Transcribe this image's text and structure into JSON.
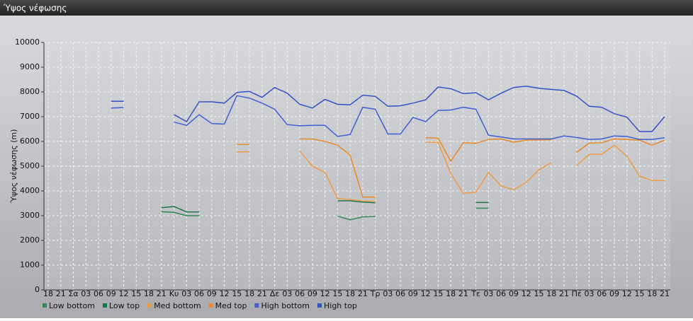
{
  "window_title": "Ύψος νέφωσης",
  "chart_data": {
    "type": "line",
    "ylabel": "Ύψος νέφωσης (m)",
    "categories": [
      "18",
      "21",
      "Σα",
      "03",
      "06",
      "09",
      "12",
      "15",
      "18",
      "21",
      "Κυ",
      "03",
      "06",
      "09",
      "12",
      "15",
      "18",
      "21",
      "Δε",
      "03",
      "06",
      "09",
      "12",
      "15",
      "18",
      "21",
      "Τρ",
      "03",
      "06",
      "09",
      "12",
      "15",
      "18",
      "21",
      "Τε",
      "03",
      "06",
      "09",
      "12",
      "15",
      "18",
      "21",
      "Πέ",
      "03",
      "06",
      "09",
      "12",
      "15",
      "18",
      "21"
    ],
    "ylim": [
      0,
      10000
    ],
    "yticks": [
      0,
      1000,
      2000,
      3000,
      4000,
      5000,
      6000,
      7000,
      8000,
      9000,
      10000
    ],
    "grid": true,
    "series": [
      {
        "name": "Low bottom",
        "color": "#2f8a55",
        "values": [
          null,
          null,
          null,
          null,
          null,
          null,
          null,
          null,
          null,
          3160,
          3130,
          3000,
          3000,
          null,
          null,
          null,
          null,
          null,
          null,
          null,
          null,
          null,
          null,
          2980,
          2830,
          2950,
          2970,
          null,
          null,
          null,
          null,
          null,
          null,
          null,
          3300,
          3300,
          null,
          null,
          null,
          null,
          null,
          null,
          null,
          null,
          null,
          null,
          null,
          null,
          null,
          null
        ]
      },
      {
        "name": "Low top",
        "color": "#1e7446",
        "values": [
          null,
          null,
          null,
          null,
          null,
          null,
          null,
          null,
          null,
          3320,
          3370,
          3150,
          3150,
          null,
          null,
          null,
          null,
          null,
          null,
          null,
          null,
          null,
          null,
          3600,
          3600,
          3550,
          3520,
          null,
          null,
          null,
          null,
          null,
          null,
          null,
          3530,
          3530,
          null,
          null,
          null,
          null,
          null,
          null,
          null,
          null,
          null,
          null,
          null,
          null,
          null,
          null
        ]
      },
      {
        "name": "Med bottom",
        "color": "#ee9b45",
        "values": [
          null,
          null,
          null,
          null,
          null,
          null,
          null,
          null,
          null,
          null,
          null,
          null,
          null,
          null,
          null,
          5580,
          5580,
          null,
          null,
          null,
          5620,
          5000,
          4750,
          3700,
          3650,
          3600,
          3580,
          null,
          null,
          null,
          5970,
          5960,
          4700,
          3900,
          3950,
          4750,
          4200,
          4050,
          4350,
          4850,
          5150,
          null,
          5020,
          5480,
          5480,
          5850,
          5400,
          4600,
          4420,
          4420
        ]
      },
      {
        "name": "Med top",
        "color": "#e88a2a",
        "values": [
          null,
          null,
          null,
          null,
          null,
          null,
          null,
          null,
          null,
          null,
          null,
          null,
          null,
          null,
          null,
          5880,
          5880,
          null,
          null,
          null,
          6100,
          6100,
          6000,
          5850,
          5450,
          3750,
          3750,
          null,
          null,
          null,
          6150,
          6130,
          5200,
          5950,
          5920,
          6080,
          6100,
          5970,
          6050,
          6060,
          6070,
          null,
          5560,
          5930,
          5950,
          6100,
          6080,
          6050,
          5850,
          6050
        ]
      },
      {
        "name": "High bottom",
        "color": "#3f5fd0",
        "values": [
          null,
          null,
          null,
          null,
          null,
          7350,
          7370,
          null,
          null,
          null,
          6780,
          6650,
          7080,
          6720,
          6700,
          7850,
          7750,
          7550,
          7300,
          6680,
          6630,
          6650,
          6650,
          6200,
          6280,
          7380,
          7300,
          6300,
          6300,
          6970,
          6800,
          7250,
          7270,
          7380,
          7300,
          6250,
          6180,
          6100,
          6100,
          6100,
          6100,
          6220,
          6160,
          6080,
          6100,
          6220,
          6200,
          6080,
          6080,
          6150
        ]
      },
      {
        "name": "High top",
        "color": "#3352c4",
        "values": [
          null,
          null,
          null,
          null,
          null,
          7620,
          7620,
          null,
          null,
          null,
          7080,
          6800,
          7600,
          7600,
          7550,
          7980,
          8020,
          7780,
          8180,
          7950,
          7500,
          7350,
          7700,
          7500,
          7480,
          7870,
          7820,
          7420,
          7440,
          7550,
          7680,
          8200,
          8130,
          7930,
          7970,
          7680,
          7950,
          8180,
          8230,
          8150,
          8100,
          8060,
          7830,
          7420,
          7380,
          7120,
          6980,
          6400,
          6400,
          7000
        ]
      }
    ]
  }
}
